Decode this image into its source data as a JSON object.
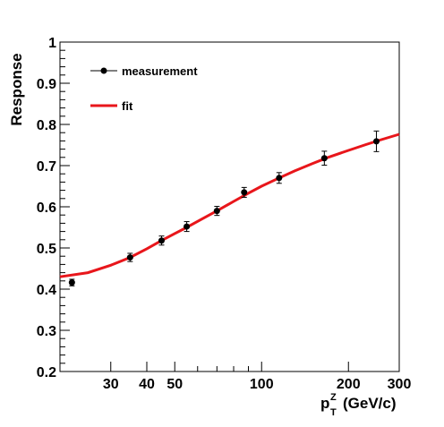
{
  "chart_data": {
    "type": "scatter",
    "title": "",
    "xlabel": {
      "main": "p",
      "sub": "T",
      "sup": "Z",
      "unit": "(GeV/c)"
    },
    "ylabel": "Response",
    "xscale": "log",
    "xlim": [
      20,
      300
    ],
    "ylim": [
      0.2,
      1.0
    ],
    "grid": false,
    "legend_position": "top-left",
    "x_ticks": [
      {
        "value": 30,
        "label": "30"
      },
      {
        "value": 40,
        "label": "40"
      },
      {
        "value": 50,
        "label": "50"
      },
      {
        "value": 100,
        "label": "100"
      },
      {
        "value": 200,
        "label": "200"
      },
      {
        "value": 300,
        "label": "300"
      }
    ],
    "y_ticks": [
      {
        "value": 0.2,
        "label": "0.2"
      },
      {
        "value": 0.3,
        "label": "0.3"
      },
      {
        "value": 0.4,
        "label": "0.4"
      },
      {
        "value": 0.5,
        "label": "0.5"
      },
      {
        "value": 0.6,
        "label": "0.6"
      },
      {
        "value": 0.7,
        "label": "0.7"
      },
      {
        "value": 0.8,
        "label": "0.8"
      },
      {
        "value": 0.9,
        "label": "0.9"
      },
      {
        "value": 1.0,
        "label": "1"
      }
    ],
    "series": [
      {
        "name": "measurement",
        "kind": "points-with-errors",
        "color": "#000000",
        "points": [
          {
            "x": 22,
            "y": 0.416,
            "err": 0.008
          },
          {
            "x": 35,
            "y": 0.477,
            "err": 0.01
          },
          {
            "x": 45,
            "y": 0.518,
            "err": 0.011
          },
          {
            "x": 55,
            "y": 0.552,
            "err": 0.012
          },
          {
            "x": 70,
            "y": 0.59,
            "err": 0.011
          },
          {
            "x": 87,
            "y": 0.635,
            "err": 0.012
          },
          {
            "x": 115,
            "y": 0.67,
            "err": 0.013
          },
          {
            "x": 165,
            "y": 0.718,
            "err": 0.017
          },
          {
            "x": 250,
            "y": 0.759,
            "err": 0.025
          }
        ]
      },
      {
        "name": "fit",
        "kind": "line",
        "color": "#e8161b",
        "points": [
          {
            "x": 20,
            "y": 0.43
          },
          {
            "x": 25,
            "y": 0.44
          },
          {
            "x": 30,
            "y": 0.458
          },
          {
            "x": 35,
            "y": 0.477
          },
          {
            "x": 40,
            "y": 0.498
          },
          {
            "x": 45,
            "y": 0.518
          },
          {
            "x": 50,
            "y": 0.535
          },
          {
            "x": 55,
            "y": 0.55
          },
          {
            "x": 62,
            "y": 0.57
          },
          {
            "x": 70,
            "y": 0.59
          },
          {
            "x": 80,
            "y": 0.613
          },
          {
            "x": 90,
            "y": 0.633
          },
          {
            "x": 100,
            "y": 0.65
          },
          {
            "x": 115,
            "y": 0.67
          },
          {
            "x": 130,
            "y": 0.687
          },
          {
            "x": 150,
            "y": 0.705
          },
          {
            "x": 170,
            "y": 0.72
          },
          {
            "x": 200,
            "y": 0.737
          },
          {
            "x": 230,
            "y": 0.751
          },
          {
            "x": 260,
            "y": 0.763
          },
          {
            "x": 300,
            "y": 0.776
          }
        ]
      }
    ]
  }
}
